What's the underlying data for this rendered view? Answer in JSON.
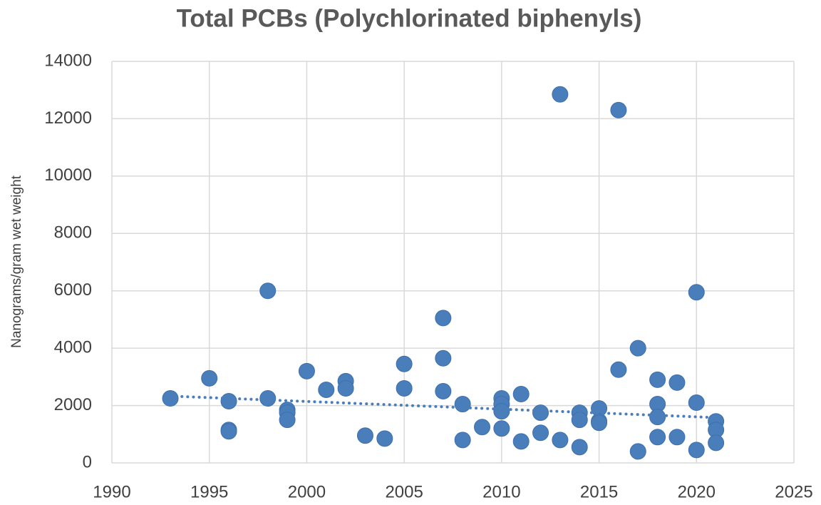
{
  "chart_data": {
    "type": "scatter",
    "title": "Total PCBs (Polychlorinated biphenyls)",
    "y_label": "Nanograms/gram wet weight",
    "x": [
      1993,
      1995,
      1996,
      1996,
      1996,
      1998,
      1998,
      1999,
      1999,
      1999,
      2000,
      2001,
      2002,
      2002,
      2003,
      2004,
      2005,
      2005,
      2007,
      2007,
      2007,
      2008,
      2008,
      2009,
      2010,
      2010,
      2010,
      2010,
      2011,
      2011,
      2012,
      2012,
      2013,
      2013,
      2014,
      2014,
      2014,
      2015,
      2015,
      2015,
      2016,
      2016,
      2017,
      2017,
      2018,
      2018,
      2018,
      2018,
      2019,
      2019,
      2020,
      2020,
      2020,
      2021,
      2021,
      2021
    ],
    "values": [
      2250,
      2950,
      2150,
      1150,
      1100,
      6000,
      2250,
      1850,
      1750,
      1500,
      3200,
      2550,
      2850,
      2600,
      950,
      850,
      3450,
      2600,
      5050,
      3650,
      2500,
      2050,
      800,
      1250,
      2250,
      2050,
      1800,
      1200,
      2400,
      750,
      1750,
      1050,
      12850,
      800,
      1750,
      1500,
      550,
      1900,
      1450,
      1400,
      12300,
      3250,
      4000,
      400,
      2900,
      2050,
      1600,
      900,
      2800,
      900,
      5950,
      2100,
      450,
      1450,
      1150,
      700
    ],
    "color": "#4a7ebb",
    "trendline": {
      "x": [
        1993,
        2021
      ],
      "values": [
        2330,
        1580
      ]
    },
    "xlim": [
      1990,
      2025
    ],
    "xticks": [
      1990,
      1995,
      2000,
      2005,
      2010,
      2015,
      2020,
      2025
    ],
    "ylim": [
      0,
      14000
    ],
    "yticks": [
      0,
      2000,
      4000,
      6000,
      8000,
      10000,
      12000,
      14000
    ],
    "grid": true
  }
}
